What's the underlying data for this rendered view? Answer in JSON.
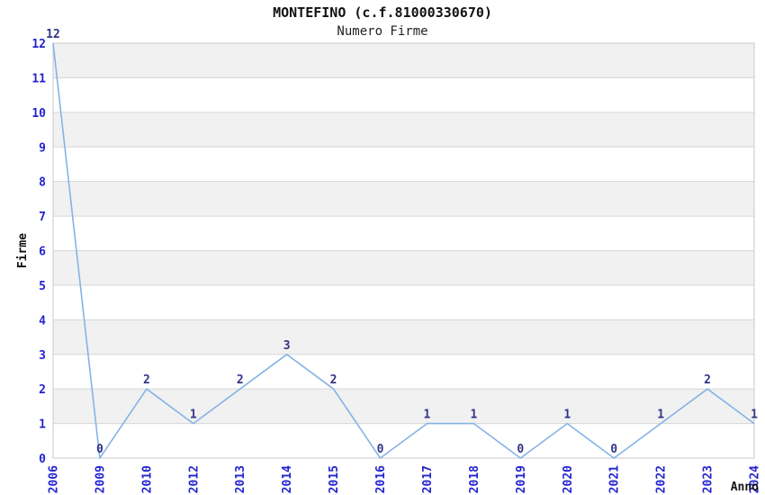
{
  "header": {
    "title": "MONTEFINO (c.f.81000330670)",
    "subtitle": "Numero Firme"
  },
  "chart_data": {
    "type": "line",
    "title": "MONTEFINO (c.f.81000330670)",
    "subtitle": "Numero Firme",
    "xlabel": "Anno",
    "ylabel": "Firme",
    "categories": [
      "2006",
      "2009",
      "2010",
      "2012",
      "2013",
      "2014",
      "2015",
      "2016",
      "2017",
      "2018",
      "2019",
      "2020",
      "2021",
      "2022",
      "2023",
      "2024"
    ],
    "values": [
      12,
      0,
      2,
      1,
      2,
      3,
      2,
      0,
      1,
      1,
      0,
      1,
      0,
      1,
      2,
      1
    ],
    "ylim": [
      0,
      12
    ],
    "yticks": [
      0,
      1,
      2,
      3,
      4,
      5,
      6,
      7,
      8,
      9,
      10,
      11,
      12
    ],
    "grid": true,
    "legend": "none",
    "band_pattern": "gray bands between odd and even y values (1-2, 3-4, 5-6, 7-8, 9-10, 11-12)",
    "style": {
      "line_color": "#85b3e6",
      "tick_label_color": "#2323cf",
      "data_label_color": "#333387",
      "axis_title_color": "#111111",
      "band_fill": "#f1f1f1",
      "grid_color": "#d6d6d6",
      "border_color": "#c9c9c9",
      "background": "#ffffff"
    }
  }
}
